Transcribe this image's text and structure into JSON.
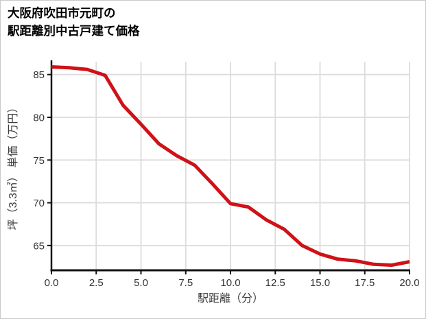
{
  "title_line1": "大阪府吹田市元町の",
  "title_line2": "駅距離別中古戸建て価格",
  "chart_data": {
    "type": "line",
    "title": "大阪府吹田市元町の駅距離別中古戸建て価格",
    "xlabel": "駅距離（分）",
    "ylabel": "坪（3.3㎡） 単価（万円）",
    "x": [
      0,
      1,
      2,
      3,
      4,
      5,
      6,
      7,
      8,
      9,
      10,
      11,
      12,
      13,
      14,
      15,
      16,
      17,
      18,
      19,
      20
    ],
    "series": [
      {
        "values": [
          85.9,
          85.8,
          85.6,
          84.9,
          81.4,
          79.2,
          76.9,
          75.5,
          74.4,
          72.2,
          69.9,
          69.5,
          68.0,
          66.9,
          65.0,
          64.0,
          63.4,
          63.2,
          62.8,
          62.7,
          63.1
        ]
      }
    ],
    "xlim": [
      0,
      20
    ],
    "ylim": [
      62.1,
      86.5
    ],
    "xticks": [
      0,
      2.5,
      5,
      7.5,
      10,
      12.5,
      15,
      17.5,
      20
    ],
    "xtick_labels": [
      "0.0",
      "2.5",
      "5.0",
      "7.5",
      "10.0",
      "12.5",
      "15.0",
      "17.5",
      "20.0"
    ],
    "yticks": [
      65,
      70,
      75,
      80,
      85
    ],
    "ytick_labels": [
      "65",
      "70",
      "75",
      "80",
      "85"
    ],
    "grid": true,
    "legend": false
  },
  "colors": {
    "line": "#d01117",
    "grid": "#dcdcdc",
    "axis": "#111111",
    "tick_text": "#333333",
    "axis_label_text": "#3d3d3d",
    "background": "#ffffff",
    "border": "#c9c9c9"
  }
}
